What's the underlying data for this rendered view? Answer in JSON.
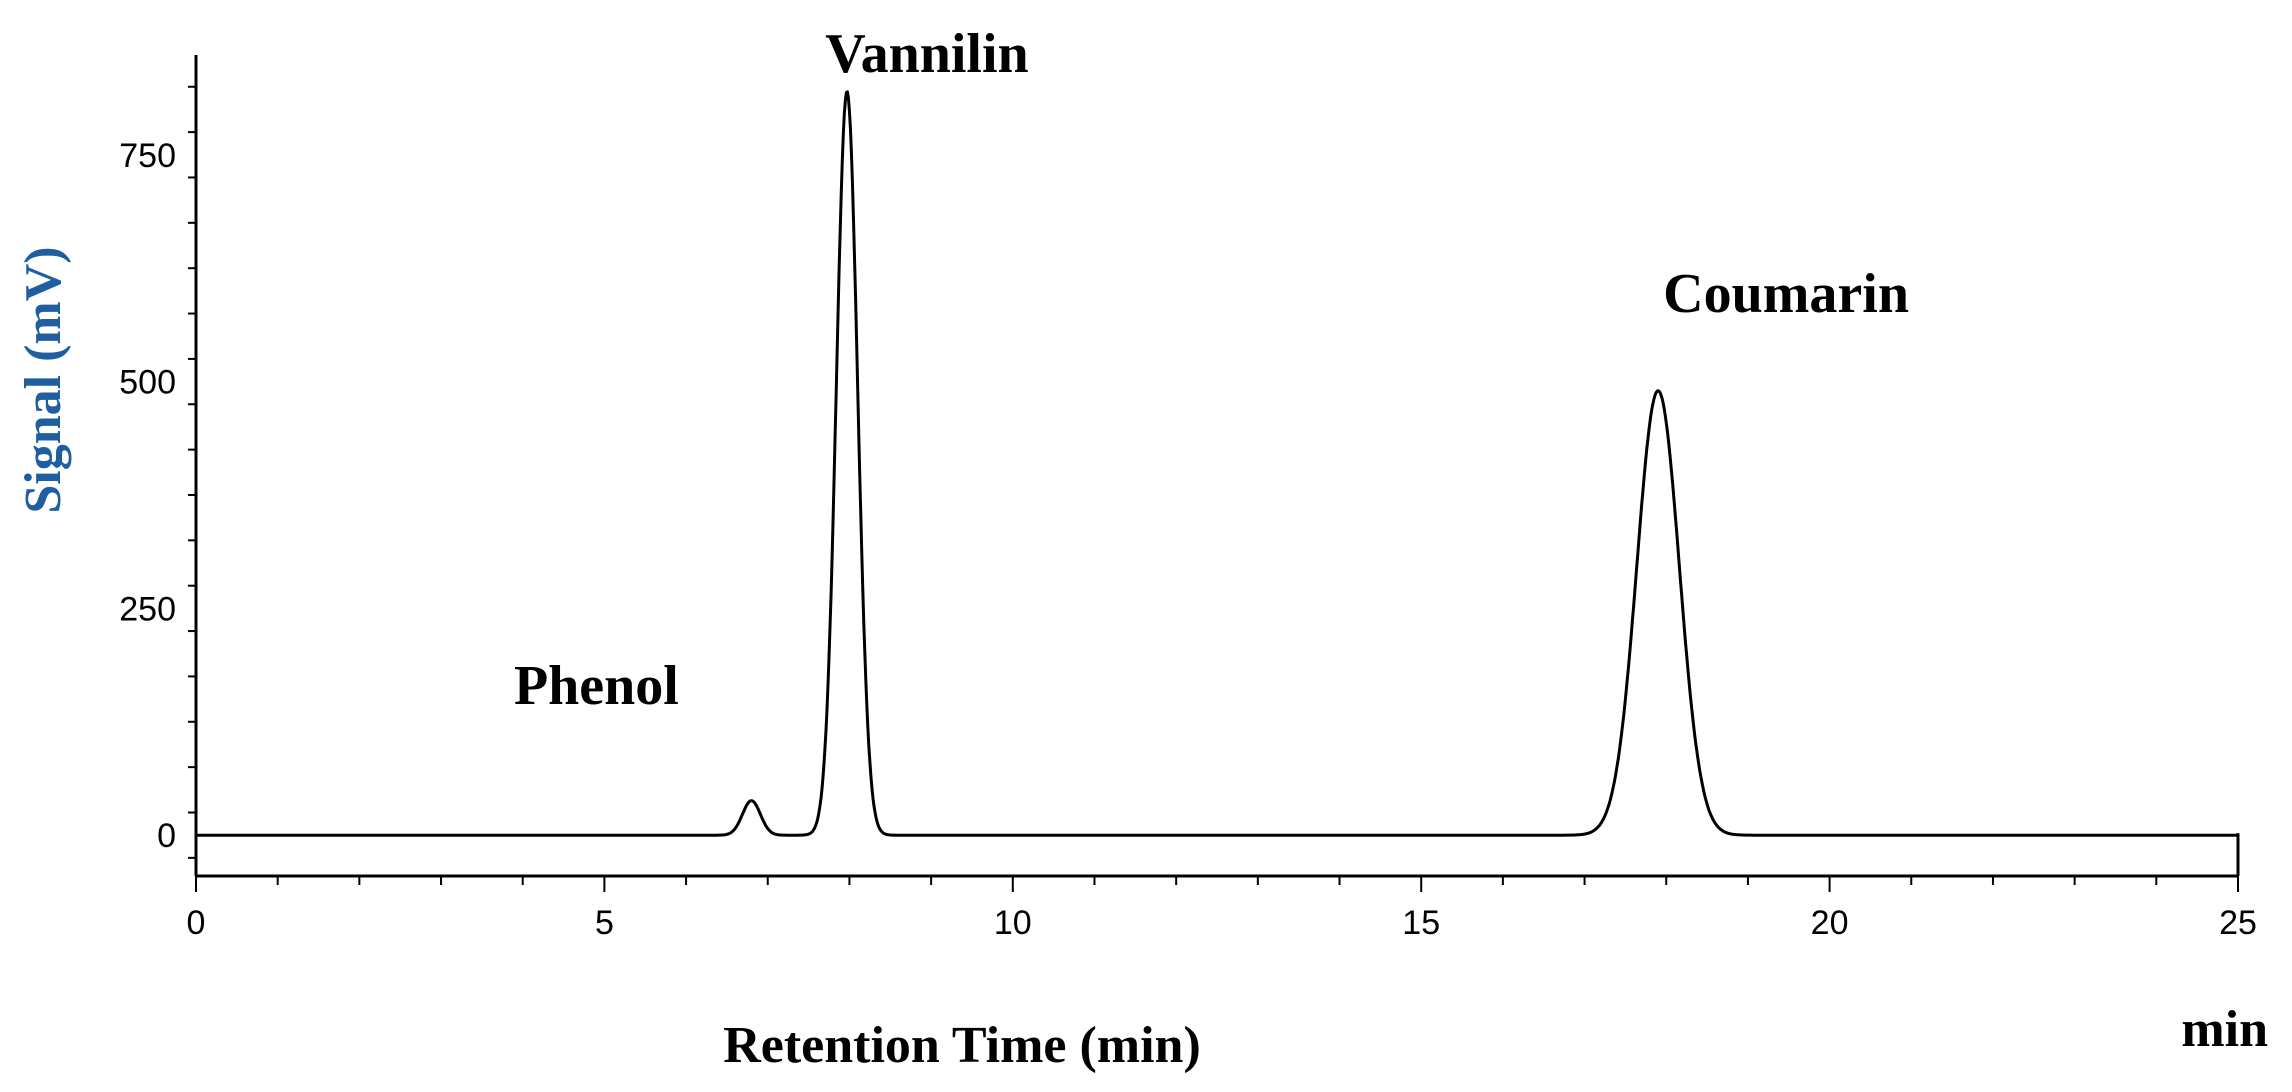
{
  "chart_data": {
    "type": "line",
    "title": "",
    "xlabel": "Retention Time (min)",
    "ylabel": "Signal (mV)",
    "x_unit_label": "min",
    "xlim": [
      0,
      25
    ],
    "ylim": [
      -45,
      860
    ],
    "x_ticks": [
      0,
      5,
      10,
      15,
      20,
      25
    ],
    "y_ticks": [
      0,
      250,
      500,
      750
    ],
    "grid": false,
    "line_color": "#000000",
    "ylabel_color": "#1f5fa0",
    "peaks": [
      {
        "label": "Phenol",
        "time": 6.8,
        "signal": 38,
        "width": 0.11
      },
      {
        "label": "Vannilin",
        "time": 7.97,
        "signal": 820,
        "width": 0.13
      },
      {
        "label": "Coumarin",
        "time": 17.9,
        "signal": 490,
        "width": 0.26
      }
    ]
  }
}
